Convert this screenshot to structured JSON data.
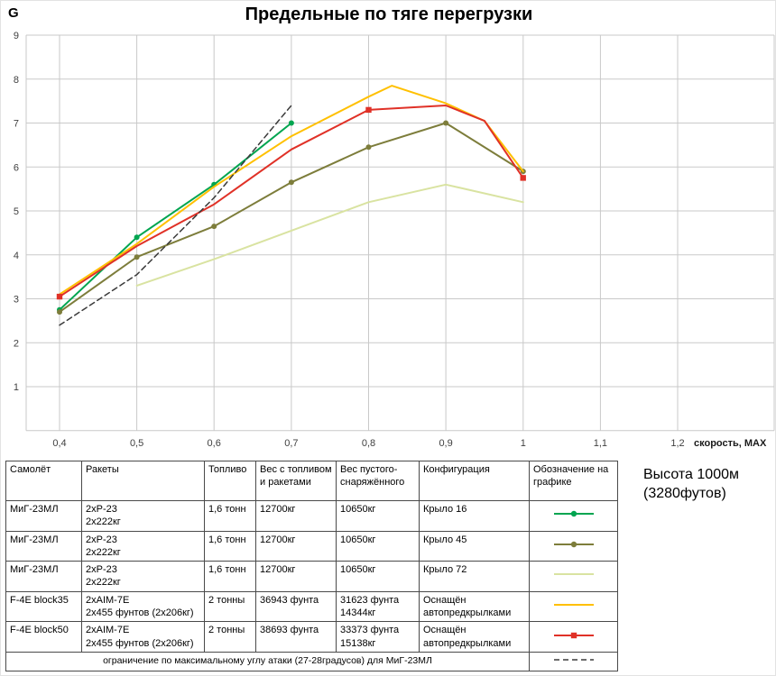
{
  "chart_data": {
    "type": "line",
    "title": "Предельные по тяге перегрузки",
    "ylabel": "G",
    "xlabel": "скорость, MAX",
    "xlim": [
      0.4,
      1.2
    ],
    "ylim": [
      0,
      9
    ],
    "grid": true,
    "legend_position": "table-below",
    "x_ticks": [
      {
        "label": "0,4",
        "value": 0.4
      },
      {
        "label": "0,5",
        "value": 0.5
      },
      {
        "label": "0,6",
        "value": 0.6
      },
      {
        "label": "0,7",
        "value": 0.7
      },
      {
        "label": "0,8",
        "value": 0.8
      },
      {
        "label": "0,9",
        "value": 0.9
      },
      {
        "label": "1",
        "value": 1.0
      },
      {
        "label": "1,1",
        "value": 1.1
      },
      {
        "label": "1,2",
        "value": 1.2
      }
    ],
    "y_ticks": [
      {
        "label": "9",
        "value": 9
      },
      {
        "label": "8",
        "value": 8
      },
      {
        "label": "7",
        "value": 7
      },
      {
        "label": "6",
        "value": 6
      },
      {
        "label": "5",
        "value": 5
      },
      {
        "label": "4",
        "value": 4
      },
      {
        "label": "3",
        "value": 3
      },
      {
        "label": "2",
        "value": 2
      },
      {
        "label": "1",
        "value": 1
      }
    ],
    "series": [
      {
        "name": "МиГ-23МЛ Крыло 16",
        "color": "#00a550",
        "marker": "circle",
        "width": 2,
        "points": [
          [
            0.4,
            2.75
          ],
          [
            0.5,
            4.4
          ],
          [
            0.6,
            5.6
          ],
          [
            0.7,
            7.0
          ]
        ]
      },
      {
        "name": "МиГ-23МЛ Крыло 45",
        "color": "#7d7d3b",
        "marker": "circle",
        "width": 2,
        "points": [
          [
            0.4,
            2.7
          ],
          [
            0.5,
            3.95
          ],
          [
            0.6,
            4.65
          ],
          [
            0.7,
            5.65
          ],
          [
            0.8,
            6.45
          ],
          [
            0.9,
            7.0
          ],
          [
            1.0,
            5.9
          ]
        ]
      },
      {
        "name": "МиГ-23МЛ Крыло 72",
        "color": "#d9e3a1",
        "marker": "none",
        "width": 2,
        "points": [
          [
            0.5,
            3.3
          ],
          [
            0.6,
            3.9
          ],
          [
            0.7,
            4.55
          ],
          [
            0.8,
            5.2
          ],
          [
            0.9,
            5.6
          ],
          [
            1.0,
            5.2
          ]
        ]
      },
      {
        "name": "F-4E block35",
        "color": "#ffc000",
        "marker": "none",
        "width": 2,
        "points": [
          [
            0.4,
            3.1
          ],
          [
            0.5,
            4.25
          ],
          [
            0.6,
            5.55
          ],
          [
            0.7,
            6.7
          ],
          [
            0.8,
            7.6
          ],
          [
            0.83,
            7.85
          ],
          [
            0.9,
            7.45
          ],
          [
            0.95,
            7.05
          ],
          [
            1.0,
            5.9
          ]
        ]
      },
      {
        "name": "F-4E block50",
        "color": "#e03127",
        "marker": "square",
        "width": 2,
        "points": [
          [
            0.4,
            3.05
          ],
          [
            0.5,
            4.2
          ],
          [
            0.6,
            5.15
          ],
          [
            0.7,
            6.4
          ],
          [
            0.8,
            7.3
          ],
          [
            0.9,
            7.4
          ],
          [
            0.95,
            7.05
          ],
          [
            1.0,
            5.75
          ]
        ],
        "marker_points": [
          [
            0.4,
            3.05
          ],
          [
            0.8,
            7.3
          ],
          [
            1.0,
            5.75
          ]
        ]
      },
      {
        "name": "ограничение по максимальному углу атаки (27-28градусов) для МиГ-23МЛ",
        "color": "#3a3a3a",
        "marker": "none",
        "width": 1.5,
        "dash": "6 4",
        "points": [
          [
            0.4,
            2.4
          ],
          [
            0.5,
            3.55
          ],
          [
            0.6,
            5.3
          ],
          [
            0.7,
            7.4
          ]
        ]
      }
    ]
  },
  "table": {
    "headers": [
      "Самолёт",
      "Ракеты",
      "Топливо",
      "Вес с топливом и ракетами",
      "Вес пустого-снаряжённого",
      "Конфигурация",
      "Обозначение на графике"
    ],
    "rows": [
      {
        "cells": [
          "МиГ-23МЛ",
          "2хР-23\n2х222кг",
          "1,6 тонн",
          "12700кг",
          "10650кг",
          "Крыло 16"
        ],
        "series_index": 0
      },
      {
        "cells": [
          "МиГ-23МЛ",
          "2хР-23\n2х222кг",
          "1,6 тонн",
          "12700кг",
          "10650кг",
          "Крыло 45"
        ],
        "series_index": 1
      },
      {
        "cells": [
          "МиГ-23МЛ",
          "2хР-23\n2х222кг",
          "1,6 тонн",
          "12700кг",
          "10650кг",
          "Крыло 72"
        ],
        "series_index": 2
      },
      {
        "cells": [
          "F-4E block35",
          "2хAIM-7E\n2х455 фунтов (2х206кг)",
          "2 тонны",
          "36943 фунта",
          "31623 фунта\n14344кг",
          "Оснащён\nавтопредкрылками"
        ],
        "series_index": 3
      },
      {
        "cells": [
          "F-4E block50",
          "2хAIM-7E\n2х455 фунтов (2х206кг)",
          "2 тонны",
          "38693 фунта",
          "33373 фунта\n15138кг",
          "Оснащён\nавтопредкрылками"
        ],
        "series_index": 4
      }
    ],
    "footer": {
      "text": "ограничение по максимальному углу атаки (27-28градусов) для МиГ-23МЛ",
      "series_index": 5
    }
  },
  "altitude_note": {
    "line1": "Высота 1000м",
    "line2": "(3280футов)"
  }
}
